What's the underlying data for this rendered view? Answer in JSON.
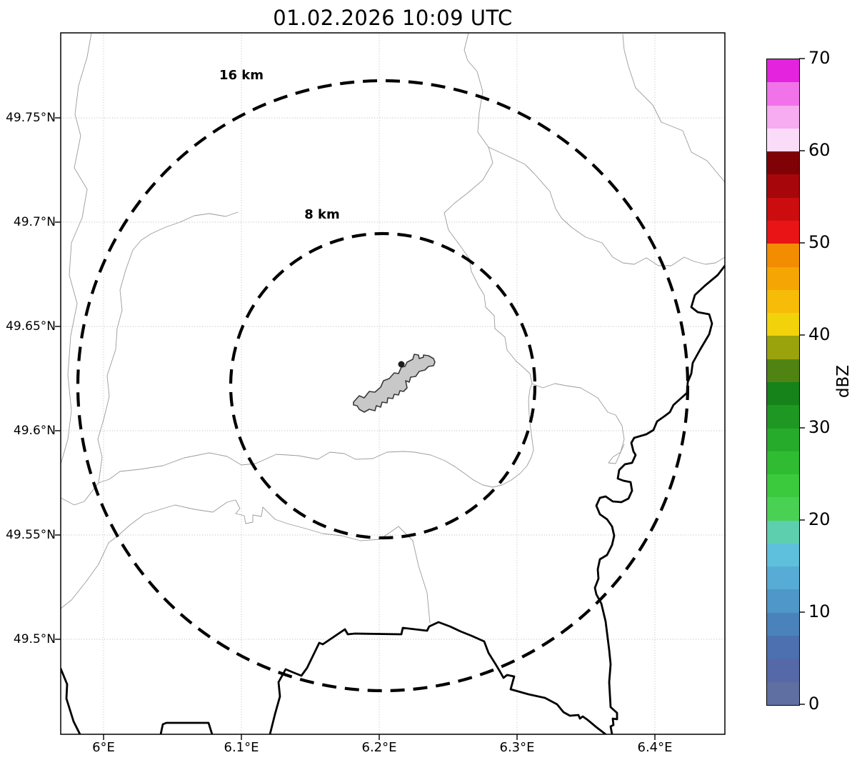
{
  "title": "01.02.2026 10:09 UTC",
  "map": {
    "x_axis": {
      "ticks": [
        {
          "label": "6°E"
        },
        {
          "label": "6.1°E"
        },
        {
          "label": "6.2°E"
        },
        {
          "label": "6.3°E"
        },
        {
          "label": "6.4°E"
        }
      ]
    },
    "y_axis": {
      "ticks": [
        {
          "label": "49.75°N"
        },
        {
          "label": "49.7°N"
        },
        {
          "label": "49.65°N"
        },
        {
          "label": "49.6°N"
        },
        {
          "label": "49.55°N"
        },
        {
          "label": "49.5°N"
        }
      ]
    },
    "range_rings": [
      {
        "label": "16 km",
        "radius_km": 16
      },
      {
        "label": "8 km",
        "radius_km": 8
      }
    ]
  },
  "colorbar": {
    "label": "dBZ",
    "ticks": [
      "0",
      "10",
      "20",
      "30",
      "40",
      "50",
      "60",
      "70"
    ],
    "value_min": 0,
    "value_max": 70,
    "band_step": 2.5,
    "band_colors_bottom_to_top": [
      "#5f6fa2",
      "#5569a8",
      "#4c70b0",
      "#4a82bb",
      "#4f97c8",
      "#57acd5",
      "#5fc0dc",
      "#5dcfae",
      "#49d154",
      "#3bca3e",
      "#2fbc33",
      "#27ab2b",
      "#1f9723",
      "#16821a",
      "#4f8413",
      "#9aa30c",
      "#f2d20b",
      "#f6bc07",
      "#f5a504",
      "#f28c01",
      "#e81416",
      "#cb0d10",
      "#a7070b",
      "#7f0206",
      "#fbdcf8",
      "#f7abf0",
      "#f173e9",
      "#e323de"
    ]
  }
}
